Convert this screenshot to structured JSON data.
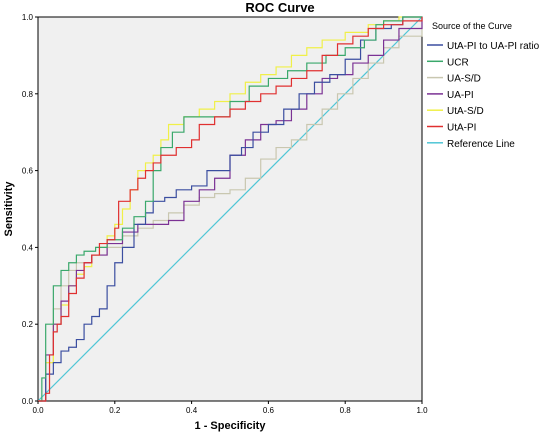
{
  "chart_data": {
    "type": "line",
    "title": "ROC Curve",
    "xlabel": "1 - Specificity",
    "ylabel": "Sensitivity",
    "xlim": [
      0,
      1
    ],
    "ylim": [
      0,
      1
    ],
    "xticks": [
      "0.0",
      "0.2",
      "0.4",
      "0.6",
      "0.8",
      "1.0"
    ],
    "yticks": [
      "0.0",
      "0.2",
      "0.4",
      "0.6",
      "0.8",
      "1.0"
    ],
    "grid": false,
    "legend_position": "right",
    "legend_title": "Source of the Curve",
    "series": [
      {
        "name": "UtA-PI to UA-PI ratio",
        "color": "#3b4ea0",
        "x": [
          0,
          0.02,
          0.04,
          0.06,
          0.08,
          0.1,
          0.12,
          0.14,
          0.16,
          0.18,
          0.2,
          0.22,
          0.25,
          0.28,
          0.3,
          0.33,
          0.36,
          0.4,
          0.44,
          0.48,
          0.5,
          0.53,
          0.56,
          0.6,
          0.64,
          0.68,
          0.72,
          0.76,
          0.8,
          0.84,
          0.88,
          0.92,
          0.95,
          1.0
        ],
        "y": [
          0,
          0.07,
          0.1,
          0.13,
          0.14,
          0.16,
          0.2,
          0.22,
          0.24,
          0.3,
          0.36,
          0.4,
          0.46,
          0.49,
          0.52,
          0.53,
          0.55,
          0.56,
          0.6,
          0.6,
          0.64,
          0.66,
          0.7,
          0.72,
          0.76,
          0.8,
          0.83,
          0.85,
          0.89,
          0.94,
          0.97,
          0.98,
          1.0,
          1.0
        ]
      },
      {
        "name": "UCR",
        "color": "#3aa86b",
        "x": [
          0,
          0.01,
          0.02,
          0.04,
          0.06,
          0.08,
          0.1,
          0.12,
          0.15,
          0.18,
          0.22,
          0.25,
          0.28,
          0.3,
          0.32,
          0.35,
          0.38,
          0.42,
          0.5,
          0.55,
          0.6,
          0.65,
          0.7,
          0.75,
          0.8,
          0.85,
          0.88,
          0.9,
          0.95,
          1.0
        ],
        "y": [
          0,
          0.06,
          0.2,
          0.3,
          0.34,
          0.36,
          0.38,
          0.39,
          0.4,
          0.42,
          0.45,
          0.48,
          0.52,
          0.6,
          0.66,
          0.7,
          0.74,
          0.74,
          0.78,
          0.82,
          0.84,
          0.86,
          0.88,
          0.9,
          0.92,
          0.94,
          0.98,
          0.99,
          1.0,
          1.0
        ]
      },
      {
        "name": "UA-S/D",
        "color": "#c9c7b0",
        "x": [
          0,
          0.02,
          0.04,
          0.06,
          0.08,
          0.1,
          0.14,
          0.18,
          0.22,
          0.26,
          0.3,
          0.34,
          0.38,
          0.42,
          0.46,
          0.5,
          0.54,
          0.58,
          0.62,
          0.66,
          0.7,
          0.74,
          0.78,
          0.82,
          0.86,
          0.9,
          0.94,
          1.0
        ],
        "y": [
          0,
          0.1,
          0.24,
          0.3,
          0.34,
          0.36,
          0.38,
          0.4,
          0.43,
          0.45,
          0.47,
          0.49,
          0.51,
          0.53,
          0.54,
          0.55,
          0.58,
          0.63,
          0.66,
          0.68,
          0.72,
          0.76,
          0.8,
          0.84,
          0.88,
          0.92,
          0.95,
          1.0
        ]
      },
      {
        "name": "UA-PI",
        "color": "#7b3294",
        "x": [
          0,
          0.02,
          0.04,
          0.06,
          0.08,
          0.1,
          0.12,
          0.14,
          0.18,
          0.22,
          0.26,
          0.3,
          0.34,
          0.38,
          0.42,
          0.46,
          0.5,
          0.54,
          0.58,
          0.62,
          0.66,
          0.7,
          0.74,
          0.78,
          0.82,
          0.86,
          0.9,
          0.94,
          1.0
        ],
        "y": [
          0,
          0.12,
          0.2,
          0.26,
          0.3,
          0.34,
          0.36,
          0.38,
          0.41,
          0.44,
          0.46,
          0.46,
          0.47,
          0.52,
          0.55,
          0.58,
          0.64,
          0.68,
          0.72,
          0.73,
          0.76,
          0.8,
          0.84,
          0.85,
          0.88,
          0.9,
          0.94,
          0.97,
          1.0
        ]
      },
      {
        "name": "UtA-S/D",
        "color": "#f0f048",
        "x": [
          0,
          0.02,
          0.04,
          0.06,
          0.08,
          0.1,
          0.12,
          0.14,
          0.16,
          0.18,
          0.2,
          0.22,
          0.24,
          0.26,
          0.28,
          0.3,
          0.32,
          0.34,
          0.38,
          0.42,
          0.46,
          0.5,
          0.54,
          0.58,
          0.62,
          0.66,
          0.7,
          0.74,
          0.8,
          0.86,
          0.9,
          0.94,
          1.0
        ],
        "y": [
          0,
          0.1,
          0.2,
          0.25,
          0.3,
          0.33,
          0.35,
          0.38,
          0.4,
          0.43,
          0.46,
          0.5,
          0.55,
          0.6,
          0.62,
          0.64,
          0.68,
          0.72,
          0.74,
          0.76,
          0.78,
          0.8,
          0.83,
          0.85,
          0.87,
          0.9,
          0.92,
          0.94,
          0.96,
          0.98,
          0.99,
          1.0,
          1.0
        ]
      },
      {
        "name": "UtA-PI",
        "color": "#e03030",
        "x": [
          0,
          0.02,
          0.03,
          0.04,
          0.05,
          0.06,
          0.08,
          0.1,
          0.12,
          0.14,
          0.16,
          0.18,
          0.2,
          0.21,
          0.24,
          0.26,
          0.28,
          0.3,
          0.32,
          0.36,
          0.4,
          0.42,
          0.46,
          0.5,
          0.54,
          0.58,
          0.62,
          0.66,
          0.7,
          0.74,
          0.78,
          0.82,
          0.86,
          0.9,
          0.95,
          1.0
        ],
        "y": [
          0,
          0.02,
          0.12,
          0.18,
          0.2,
          0.22,
          0.28,
          0.32,
          0.36,
          0.38,
          0.41,
          0.42,
          0.45,
          0.52,
          0.55,
          0.58,
          0.6,
          0.62,
          0.64,
          0.66,
          0.68,
          0.72,
          0.74,
          0.76,
          0.78,
          0.8,
          0.82,
          0.84,
          0.86,
          0.9,
          0.93,
          0.95,
          0.97,
          0.98,
          0.99,
          1.0
        ]
      },
      {
        "name": "Reference Line",
        "color": "#4fc6d6",
        "x": [
          0,
          1
        ],
        "y": [
          0,
          1
        ]
      }
    ]
  }
}
